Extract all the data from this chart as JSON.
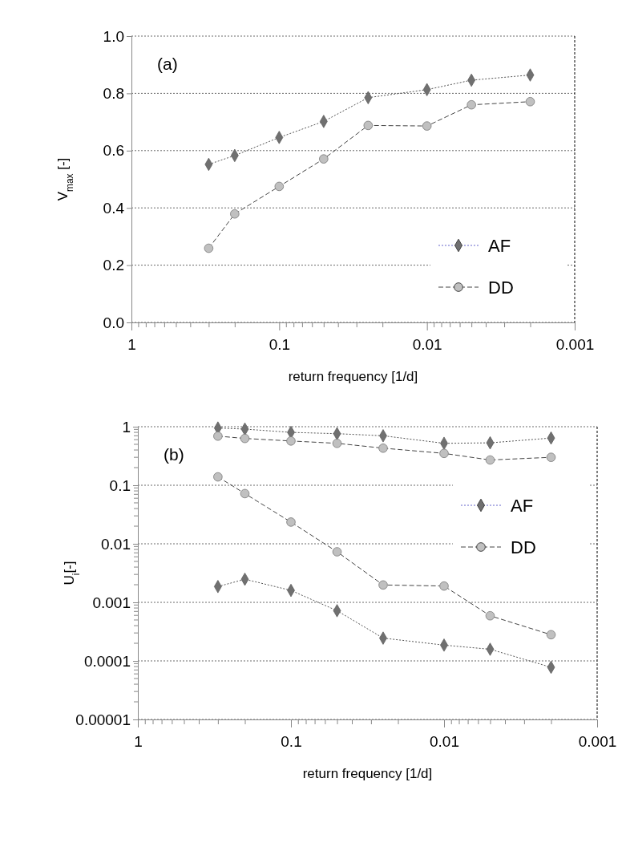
{
  "chart_data": [
    {
      "type": "line",
      "xlabel": "return frequency [1/d]",
      "ylabel": "V$_{max}$ [-]",
      "annotations": [
        "(a)"
      ],
      "x": [
        0.3,
        0.2,
        0.1,
        0.05,
        0.025,
        0.01,
        0.005,
        0.002
      ],
      "log": "x",
      "xlim": [
        1,
        0.001
      ],
      "xticks": [
        1,
        {
          "value": 0.9,
          "label": null
        },
        {
          "value": 0.8,
          "label": null
        },
        {
          "value": 0.7,
          "label": null
        },
        {
          "value": 0.6,
          "label": null
        },
        {
          "value": 0.5,
          "label": null
        },
        {
          "value": 0.4,
          "label": null
        },
        {
          "value": 0.3,
          "label": null
        },
        {
          "value": 0.2,
          "label": null
        },
        0.1,
        {
          "value": 0.09,
          "label": null
        },
        {
          "value": 0.08,
          "label": null
        },
        {
          "value": 0.07,
          "label": null
        },
        {
          "value": 0.06,
          "label": null
        },
        {
          "value": 0.05,
          "label": null
        },
        {
          "value": 0.04,
          "label": null
        },
        {
          "value": 0.03,
          "label": null
        },
        {
          "value": 0.02,
          "label": null
        },
        0.01,
        {
          "value": 0.009,
          "label": null
        },
        {
          "value": 0.008,
          "label": null
        },
        {
          "value": 0.007,
          "label": null
        },
        {
          "value": 0.006,
          "label": null
        },
        {
          "value": 0.005,
          "label": null
        },
        {
          "value": 0.004,
          "label": null
        },
        {
          "value": 0.003,
          "label": null
        },
        {
          "value": 0.002,
          "label": null
        },
        0.001
      ],
      "ylim": [
        0,
        1
      ],
      "yticks": [
        {
          "value": 0,
          "label": "0.0"
        },
        0.2,
        0.4,
        0.6,
        0.8,
        {
          "value": 1,
          "label": "1.0"
        }
      ],
      "grid": "y",
      "legend": "bottom right",
      "series": [
        {
          "name": "AF",
          "color": "#707070",
          "marker": "diamond",
          "line_style": "dotted",
          "values": [
            0.552,
            0.583,
            0.646,
            0.702,
            0.785,
            0.813,
            0.846,
            0.864
          ]
        },
        {
          "name": "DD",
          "color": "#c0c0c0",
          "marker": "circle",
          "line_style": "dashed",
          "values": [
            0.259,
            0.379,
            0.475,
            0.571,
            0.688,
            0.686,
            0.76,
            0.771
          ]
        }
      ]
    },
    {
      "type": "line",
      "xlabel": "return frequency [1/d]",
      "ylabel": "U$_{i}$[-]",
      "annotations": [
        "(b)"
      ],
      "x": [
        0.3,
        0.2,
        0.1,
        0.05,
        0.025,
        0.01,
        0.005,
        0.002
      ],
      "log": "xy",
      "xlim": [
        1,
        0.001
      ],
      "xticks": [
        1,
        {
          "value": 0.9,
          "label": null
        },
        {
          "value": 0.8,
          "label": null
        },
        {
          "value": 0.7,
          "label": null
        },
        {
          "value": 0.6,
          "label": null
        },
        {
          "value": 0.5,
          "label": null
        },
        {
          "value": 0.4,
          "label": null
        },
        {
          "value": 0.3,
          "label": null
        },
        {
          "value": 0.2,
          "label": null
        },
        0.1,
        {
          "value": 0.09,
          "label": null
        },
        {
          "value": 0.08,
          "label": null
        },
        {
          "value": 0.07,
          "label": null
        },
        {
          "value": 0.06,
          "label": null
        },
        {
          "value": 0.05,
          "label": null
        },
        {
          "value": 0.04,
          "label": null
        },
        {
          "value": 0.03,
          "label": null
        },
        {
          "value": 0.02,
          "label": null
        },
        0.01,
        {
          "value": 0.009,
          "label": null
        },
        {
          "value": 0.008,
          "label": null
        },
        {
          "value": 0.007,
          "label": null
        },
        {
          "value": 0.006,
          "label": null
        },
        {
          "value": 0.005,
          "label": null
        },
        {
          "value": 0.004,
          "label": null
        },
        {
          "value": 0.003,
          "label": null
        },
        {
          "value": 0.002,
          "label": null
        },
        0.001
      ],
      "ylim": [
        1e-05,
        1
      ],
      "yticks": [
        {
          "value": 1e-05,
          "label": "0.00001"
        },
        {
          "value": 0.0001,
          "label": "0.0001"
        },
        0.001,
        0.01,
        0.1,
        1
      ],
      "grid": "y",
      "legend": "right",
      "series": [
        {
          "name": "AF",
          "color": "#707070",
          "marker": "diamond",
          "line_style": "dotted",
          "values": [
            0.95,
            0.91,
            0.8,
            0.76,
            0.7,
            0.52,
            0.53,
            0.64
          ]
        },
        {
          "name": "DD",
          "color": "#c0c0c0",
          "marker": "circle",
          "line_style": "dashed",
          "values": [
            0.69,
            0.63,
            0.57,
            0.52,
            0.43,
            0.35,
            0.27,
            0.3
          ]
        },
        {
          "name": "DD",
          "color": "#c0c0c0",
          "marker": "circle",
          "line_style": "dashed",
          "values": [
            0.139,
            0.072,
            0.0235,
            0.0073,
            0.00198,
            0.0019,
            0.00059,
            0.00028
          ]
        },
        {
          "name": "AF",
          "color": "#707070",
          "marker": "diamond",
          "line_style": "dotted",
          "values": [
            0.00186,
            0.00248,
            0.0016,
            0.00072,
            0.000245,
            0.000186,
            0.000158,
            7.78e-05
          ]
        }
      ]
    }
  ]
}
